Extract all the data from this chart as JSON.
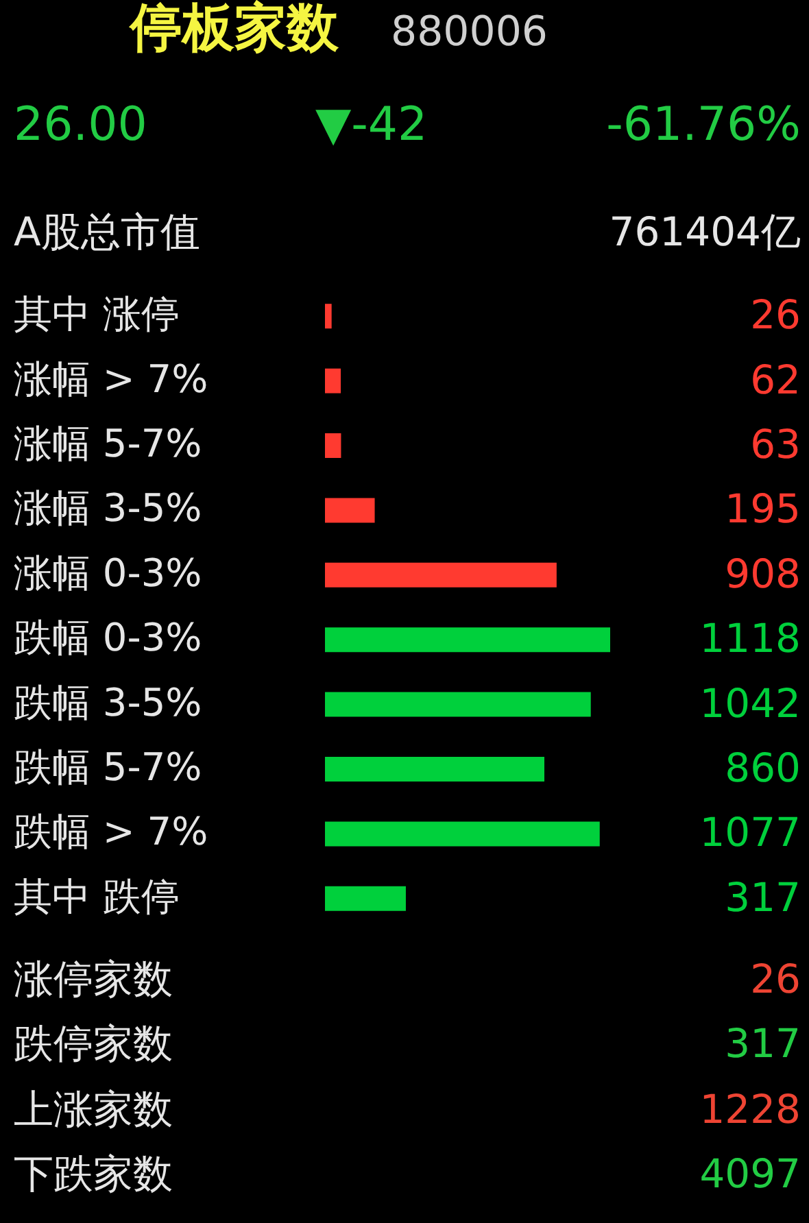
{
  "chart_data": {
    "type": "bar",
    "orientation": "horizontal",
    "title": "停板家数",
    "subtitle": "880006",
    "categories": [
      "其中 涨停",
      "涨幅 > 7%",
      "涨幅 5-7%",
      "涨幅 3-5%",
      "涨幅 0-3%",
      "跌幅 0-3%",
      "跌幅 3-5%",
      "跌幅 5-7%",
      "跌幅 > 7%",
      "其中 跌停"
    ],
    "values": [
      26,
      62,
      63,
      195,
      908,
      1118,
      1042,
      860,
      1077,
      317
    ],
    "colors": [
      "#ff3a30",
      "#ff3a30",
      "#ff3a30",
      "#ff3a30",
      "#ff3a30",
      "#00d03c",
      "#00d03c",
      "#00d03c",
      "#00d03c",
      "#00d03c"
    ],
    "data_labels": true,
    "annotations": [
      "26.00",
      "▼-42",
      "-61.76%",
      "A股总市值",
      "761404亿",
      "涨停家数",
      "26",
      "跌停家数",
      "317",
      "上涨家数",
      "1228",
      "下跌家数",
      "4097"
    ]
  }
}
